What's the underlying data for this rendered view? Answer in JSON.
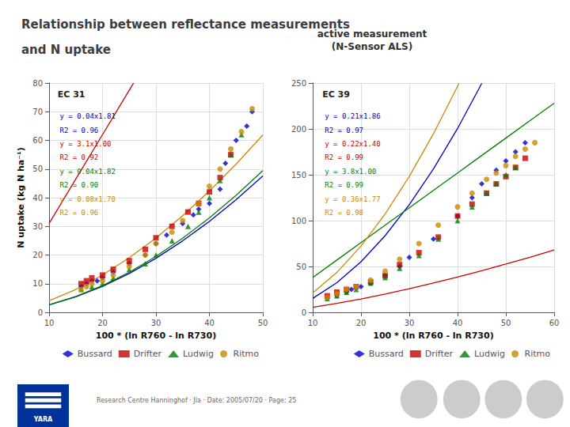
{
  "title": [
    "Relationship between reflectance measurements",
    "and N uptake"
  ],
  "subtitle": "active measurement\n(N-Sensor ALS)",
  "annotations": [
    {
      "text": "Research Centre Hanninghof · Jla · Date: 2005/07/20 · Page: 25"
    },
    {
      "text": "YARA"
    }
  ],
  "chart_data": [
    {
      "type": "scatter",
      "title": "EC 31",
      "xlabel": "100 * (ln R760 - ln R730)",
      "ylabel": "N uptake (kg N ha⁻¹)",
      "xlim": [
        10,
        50
      ],
      "ylim": [
        0,
        80
      ],
      "xticks": [
        10,
        20,
        30,
        40,
        50
      ],
      "yticks": [
        0,
        10,
        20,
        30,
        40,
        50,
        60,
        70,
        80
      ],
      "grid": true,
      "legend": "lower right",
      "annotations": [
        {
          "text": "y = 0.04x1.81",
          "color": "#0000cc"
        },
        {
          "text": "R2 = 0.96",
          "color": "#0000cc"
        },
        {
          "text": "y = 3.1x1.00",
          "color": "#cc0000"
        },
        {
          "text": "R2 = 0.92",
          "color": "#cc0000"
        },
        {
          "text": "y = 0.04x1.82",
          "color": "#008000"
        },
        {
          "text": "R2 = 0.90",
          "color": "#008000"
        },
        {
          "text": "y = 0.08x1.70",
          "color": "#cc8800"
        },
        {
          "text": "R2 = 0.96",
          "color": "#cc8800"
        }
      ],
      "series": [
        {
          "name": "Bussard",
          "color": "#0000cc",
          "marker": "diamond",
          "x": [
            16,
            17,
            18,
            19,
            20,
            22,
            25,
            28,
            30,
            32,
            35,
            37,
            38,
            40,
            42,
            43,
            45,
            47,
            48
          ],
          "values": [
            9,
            10,
            11,
            11,
            12,
            14,
            17,
            20,
            24,
            27,
            31,
            34,
            36,
            38,
            43,
            52,
            60,
            65,
            70
          ],
          "fit": {
            "type": "line",
            "x": [
              10,
              15,
              20,
              25,
              30,
              35,
              40,
              45,
              50
            ],
            "values": [
              2.58,
              5.38,
              9.06,
              13.56,
              18.86,
              24.94,
              31.75,
              39.3,
              47.56
            ]
          }
        },
        {
          "name": "Drifter",
          "color": "#cc0000",
          "marker": "square",
          "x": [
            16,
            17,
            18,
            20,
            22,
            25,
            28,
            30,
            33,
            36,
            38,
            40,
            42,
            44
          ],
          "values": [
            10,
            11,
            12,
            13,
            15,
            18,
            22,
            26,
            30,
            35,
            38,
            42,
            47,
            55
          ],
          "fit": {
            "type": "line",
            "x": [
              10,
              15,
              20,
              25,
              25.8
            ],
            "values": [
              31,
              46.5,
              62,
              77.5,
              79.98
            ]
          }
        },
        {
          "name": "Ludwig",
          "color": "#008000",
          "marker": "triangle",
          "x": [
            16,
            18,
            20,
            22,
            25,
            28,
            30,
            33,
            36,
            38,
            40,
            42,
            44,
            46
          ],
          "values": [
            8,
            9,
            10,
            12,
            15,
            17,
            20,
            25,
            30,
            35,
            40,
            46,
            55,
            62
          ],
          "fit": {
            "type": "line",
            "x": [
              10,
              15,
              20,
              25,
              30,
              35,
              40,
              45,
              50
            ],
            "values": [
              2.64,
              5.53,
              9.33,
              14.01,
              19.52,
              25.84,
              32.95,
              40.82,
              49.45
            ]
          }
        },
        {
          "name": "Ritmo",
          "color": "#cc8800",
          "marker": "circle",
          "x": [
            16,
            17,
            18,
            20,
            22,
            25,
            28,
            30,
            33,
            35,
            38,
            40,
            42,
            44,
            46,
            48
          ],
          "values": [
            8,
            9,
            10,
            11,
            13,
            16,
            20,
            24,
            28,
            32,
            38,
            44,
            50,
            57,
            63,
            71
          ],
          "fit": {
            "type": "line",
            "x": [
              10,
              15,
              20,
              25,
              30,
              35,
              40,
              45,
              50
            ],
            "values": [
              4.01,
              7.99,
              13.03,
              19.04,
              25.95,
              33.73,
              42.32,
              51.71,
              61.85
            ]
          }
        }
      ]
    },
    {
      "type": "scatter",
      "title": "EC 39",
      "xlabel": "100 * (ln R760 - ln R730)",
      "xlim": [
        10,
        60
      ],
      "ylim": [
        0,
        250
      ],
      "xticks": [
        10,
        20,
        30,
        40,
        50,
        60
      ],
      "yticks": [
        0,
        50,
        100,
        150,
        200,
        250
      ],
      "grid": true,
      "legend": "lower right",
      "annotations": [
        {
          "text": "y = 0.21x1.86",
          "color": "#0000cc"
        },
        {
          "text": "R2 = 0.97",
          "color": "#0000cc"
        },
        {
          "text": "y = 0.22x1.40",
          "color": "#cc0000"
        },
        {
          "text": "R2 = 0.99",
          "color": "#cc0000"
        },
        {
          "text": "y = 3.8x1.00",
          "color": "#008000"
        },
        {
          "text": "R2 = 0.99",
          "color": "#008000"
        },
        {
          "text": "y = 0.36x1.77",
          "color": "#cc8800"
        },
        {
          "text": "R2 = 0.98",
          "color": "#cc8800"
        }
      ],
      "series": [
        {
          "name": "Bussard",
          "color": "#0000cc",
          "marker": "diamond",
          "x": [
            13,
            15,
            17,
            18,
            20,
            22,
            25,
            28,
            30,
            35,
            40,
            43,
            45,
            48,
            50,
            52,
            54
          ],
          "values": [
            15,
            18,
            22,
            25,
            28,
            32,
            40,
            50,
            60,
            80,
            105,
            125,
            140,
            155,
            165,
            175,
            185
          ],
          "fit": {
            "type": "line",
            "x": [
              10,
              15,
              20,
              25,
              30,
              35,
              40,
              45,
              45.04
            ],
            "values": [
              15.21,
              32.34,
              55.22,
              83.63,
              117.4,
              156.38,
              200.47,
              249.57,
              249.98
            ]
          }
        },
        {
          "name": "Drifter",
          "color": "#cc0000",
          "marker": "square",
          "x": [
            13,
            15,
            17,
            19,
            22,
            25,
            28,
            32,
            36,
            40,
            43,
            46,
            48,
            50,
            52,
            54
          ],
          "values": [
            18,
            22,
            25,
            28,
            33,
            40,
            52,
            65,
            82,
            105,
            118,
            130,
            140,
            148,
            158,
            168
          ],
          "fit": {
            "type": "line",
            "x": [
              10,
              15,
              20,
              25,
              30,
              35,
              40,
              45,
              50,
              55,
              60
            ],
            "values": [
              5.53,
              9.75,
              14.58,
              19.93,
              25.73,
              31.92,
              38.49,
              45.39,
              52.6,
              60.11,
              67.89
            ]
          }
        },
        {
          "name": "Ludwig",
          "color": "#008000",
          "marker": "triangle",
          "x": [
            13,
            15,
            17,
            19,
            22,
            25,
            28,
            32,
            36,
            40,
            43,
            46,
            48,
            50,
            52
          ],
          "values": [
            15,
            18,
            22,
            25,
            32,
            38,
            48,
            62,
            80,
            100,
            115,
            130,
            140,
            150,
            158
          ],
          "fit": {
            "type": "line",
            "x": [
              10,
              15,
              20,
              25,
              30,
              35,
              40,
              45,
              50,
              55,
              60
            ],
            "values": [
              38,
              57,
              76,
              95,
              114,
              133,
              152,
              171,
              190,
              209,
              228
            ]
          }
        },
        {
          "name": "Ritmo",
          "color": "#cc8800",
          "marker": "circle",
          "x": [
            13,
            15,
            17,
            19,
            22,
            25,
            28,
            32,
            36,
            40,
            43,
            46,
            48,
            50,
            52,
            54,
            56
          ],
          "values": [
            16,
            20,
            25,
            28,
            35,
            45,
            58,
            75,
            95,
            115,
            130,
            145,
            152,
            160,
            170,
            178,
            185
          ],
          "fit": {
            "type": "line",
            "x": [
              10,
              15,
              20,
              25,
              30,
              35,
              40,
              40.31
            ],
            "values": [
              21.2,
              43.45,
              72.3,
              107.31,
              148.19,
              194.67,
              246.57,
              249.97
            ]
          }
        }
      ]
    }
  ]
}
